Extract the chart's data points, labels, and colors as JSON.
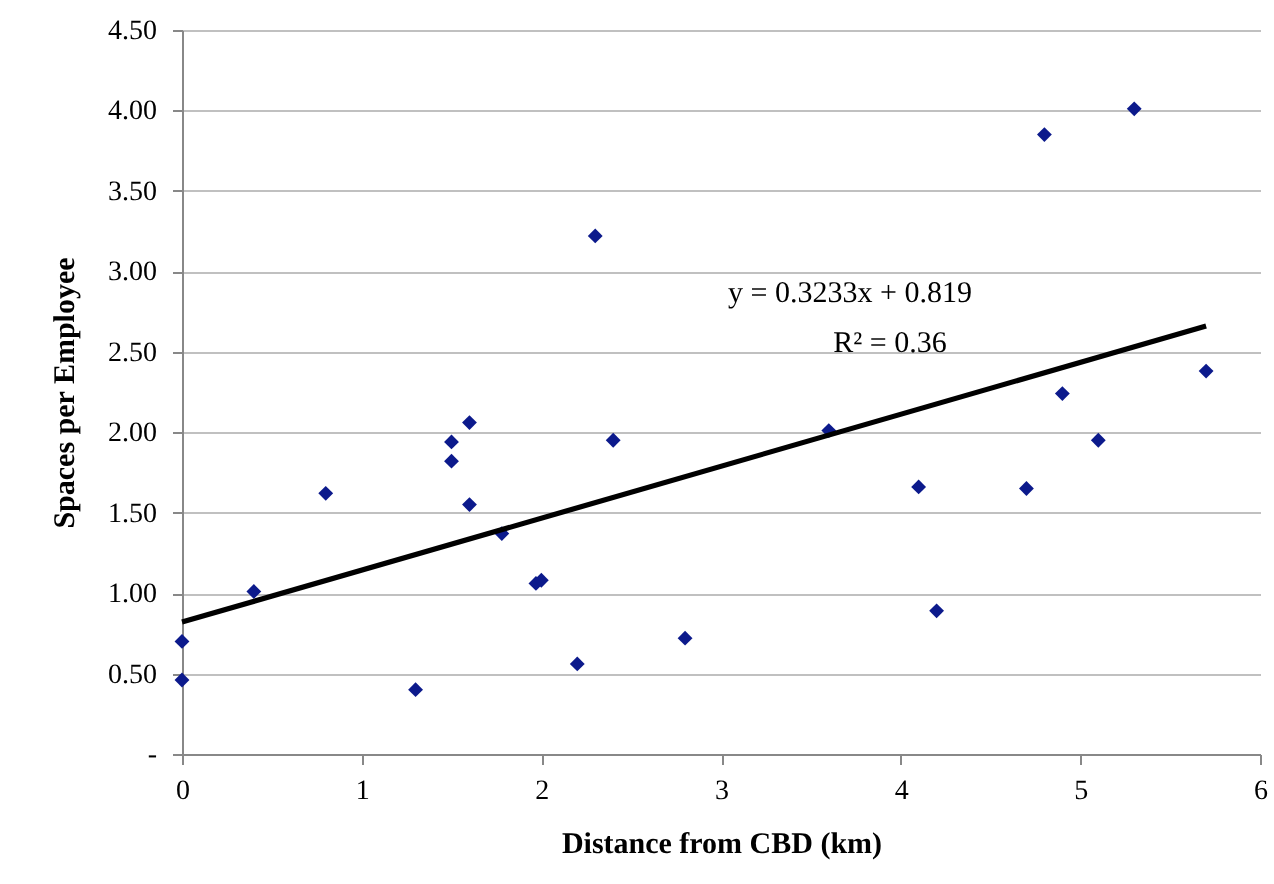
{
  "chart_data": {
    "type": "scatter",
    "xlabel": "Distance from CBD (km)",
    "ylabel": "Spaces per Employee",
    "xlim": [
      0,
      6
    ],
    "xticks": [
      0,
      1,
      2,
      3,
      4,
      5,
      6
    ],
    "ylim": [
      0,
      4.5
    ],
    "yticks": [
      {
        "value": 0,
        "label": "-"
      },
      {
        "value": 0.5,
        "label": "0.50"
      },
      {
        "value": 1,
        "label": "1.00"
      },
      {
        "value": 1.5,
        "label": "1.50"
      },
      {
        "value": 2,
        "label": "2.00"
      },
      {
        "value": 2.5,
        "label": "2.50"
      },
      {
        "value": 3,
        "label": "3.00"
      },
      {
        "value": 3.5,
        "label": "3.50"
      },
      {
        "value": 4,
        "label": "4.00"
      },
      {
        "value": 4.5,
        "label": "4.50"
      }
    ],
    "grid": "y",
    "annotations": [
      "y = 0.3233x + 0.819",
      "R² = 0.36"
    ],
    "series": [
      {
        "color": "#0c1a8c",
        "marker": "diamond",
        "x": [
          0,
          0,
          0.4,
          0.8,
          1.3,
          1.5,
          1.5,
          1.6,
          1.6,
          1.78,
          1.97,
          2.0,
          2.2,
          2.3,
          2.4,
          2.8,
          3.6,
          4.1,
          4.2,
          4.7,
          4.8,
          4.9,
          5.1,
          5.3,
          5.7
        ],
        "values": [
          0.7,
          0.46,
          1.01,
          1.62,
          0.4,
          1.94,
          1.82,
          2.06,
          1.55,
          1.37,
          1.06,
          1.08,
          0.56,
          3.22,
          1.95,
          0.72,
          2.01,
          1.66,
          0.89,
          1.65,
          3.85,
          2.24,
          1.95,
          4.01,
          2.38
        ]
      },
      {
        "type": "line",
        "color": "#000000",
        "line_style": "solid",
        "x": [
          0,
          5.7
        ],
        "values": [
          0.82,
          2.66
        ]
      }
    ]
  }
}
